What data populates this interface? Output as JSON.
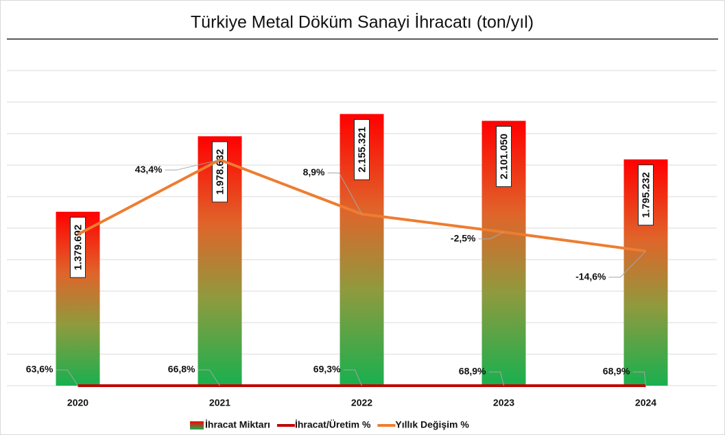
{
  "chart_data": {
    "type": "bar",
    "title": "Türkiye Metal Döküm Sanayi İhracatı (ton/yıl)",
    "categories": [
      "2020",
      "2021",
      "2022",
      "2023",
      "2024"
    ],
    "ylim": [
      0,
      2500000
    ],
    "yticks": [
      0,
      250000,
      500000,
      750000,
      1000000,
      1250000,
      1500000,
      1750000,
      2000000,
      2250000,
      2500000
    ],
    "y2lim": [
      -100,
      100
    ],
    "grid": true,
    "legend": "bottom",
    "series": [
      {
        "name": "İhracat Miktarı",
        "type": "bar",
        "color": "gradient",
        "values": [
          1379692,
          1978632,
          2155321,
          2101050,
          1795232
        ],
        "value_labels": [
          "1.379.692",
          "1.978.632",
          "2.155.321",
          "2.101.050",
          "1.795.232"
        ]
      },
      {
        "name": "İhracat/Üretim %",
        "type": "line",
        "color": "#c00000",
        "values": [
          63.6,
          66.8,
          69.3,
          68.9,
          68.9
        ],
        "value_labels": [
          "63,6%",
          "66,8%",
          "69,3%",
          "68,9%",
          "68,9%"
        ]
      },
      {
        "name": "Yıllık Değişim %",
        "type": "line",
        "axis": "y2",
        "color": "#ed7d31",
        "values": [
          -4,
          43.4,
          8.9,
          -2.5,
          -14.6
        ],
        "value_labels": [
          null,
          "43,4%",
          "8,9%",
          "-2,5%",
          "-14,6%"
        ]
      }
    ]
  }
}
